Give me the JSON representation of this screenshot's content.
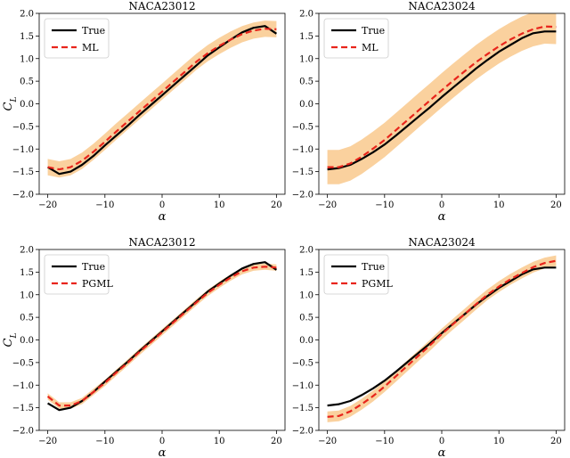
{
  "chart_data": [
    {
      "type": "line",
      "title": "NACA23012",
      "xlabel": "α",
      "ylabel": "C_L",
      "xlim": [
        -21.5,
        21.5
      ],
      "ylim": [
        -2.0,
        2.0
      ],
      "xticks": [
        -20,
        -10,
        0,
        10,
        20
      ],
      "yticks": [
        -2.0,
        -1.5,
        -1.0,
        -0.5,
        0.0,
        0.5,
        1.0,
        1.5,
        2.0
      ],
      "legend": "top-left",
      "x": [
        -20,
        -18,
        -16,
        -14,
        -12,
        -10,
        -8,
        -6,
        -4,
        -2,
        0,
        2,
        4,
        6,
        8,
        10,
        12,
        14,
        16,
        18,
        20
      ],
      "series": [
        {
          "name": "True",
          "style": "solid",
          "color": "#000000",
          "values": [
            -1.4,
            -1.55,
            -1.5,
            -1.35,
            -1.15,
            -0.92,
            -0.7,
            -0.48,
            -0.25,
            -0.03,
            0.19,
            0.41,
            0.63,
            0.85,
            1.07,
            1.25,
            1.42,
            1.58,
            1.68,
            1.72,
            1.55
          ]
        },
        {
          "name": "ML",
          "style": "dashed",
          "color": "#e8251c",
          "band": 0.18,
          "band_color": "#f9c98d",
          "values": [
            -1.4,
            -1.45,
            -1.4,
            -1.26,
            -1.06,
            -0.84,
            -0.61,
            -0.39,
            -0.17,
            0.05,
            0.27,
            0.49,
            0.71,
            0.93,
            1.12,
            1.28,
            1.42,
            1.54,
            1.62,
            1.66,
            1.65
          ]
        }
      ]
    },
    {
      "type": "line",
      "title": "NACA23024",
      "xlabel": "α",
      "ylabel": "",
      "xlim": [
        -21.5,
        21.5
      ],
      "ylim": [
        -2.0,
        2.0
      ],
      "xticks": [
        -20,
        -10,
        0,
        10,
        20
      ],
      "yticks": [
        -2.0,
        -1.5,
        -1.0,
        -0.5,
        0.0,
        0.5,
        1.0,
        1.5,
        2.0
      ],
      "legend": "top-left",
      "x": [
        -20,
        -18,
        -16,
        -14,
        -12,
        -10,
        -8,
        -6,
        -4,
        -2,
        0,
        2,
        4,
        6,
        8,
        10,
        12,
        14,
        16,
        18,
        20
      ],
      "series": [
        {
          "name": "True",
          "style": "solid",
          "color": "#000000",
          "values": [
            -1.45,
            -1.42,
            -1.35,
            -1.22,
            -1.07,
            -0.9,
            -0.7,
            -0.49,
            -0.28,
            -0.07,
            0.15,
            0.36,
            0.57,
            0.78,
            0.97,
            1.15,
            1.3,
            1.45,
            1.56,
            1.6,
            1.6
          ]
        },
        {
          "name": "ML",
          "style": "dashed",
          "color": "#e8251c",
          "band": 0.38,
          "band_color": "#f9c98d",
          "values": [
            -1.4,
            -1.4,
            -1.32,
            -1.17,
            -0.99,
            -0.8,
            -0.58,
            -0.36,
            -0.14,
            0.08,
            0.3,
            0.51,
            0.72,
            0.92,
            1.1,
            1.27,
            1.42,
            1.55,
            1.65,
            1.71,
            1.7
          ]
        }
      ]
    },
    {
      "type": "line",
      "title": "NACA23012",
      "xlabel": "α",
      "ylabel": "C_L",
      "xlim": [
        -21.5,
        21.5
      ],
      "ylim": [
        -2.0,
        2.0
      ],
      "xticks": [
        -20,
        -10,
        0,
        10,
        20
      ],
      "yticks": [
        -2.0,
        -1.5,
        -1.0,
        -0.5,
        0.0,
        0.5,
        1.0,
        1.5,
        2.0
      ],
      "legend": "top-left",
      "x": [
        -20,
        -18,
        -16,
        -14,
        -12,
        -10,
        -8,
        -6,
        -4,
        -2,
        0,
        2,
        4,
        6,
        8,
        10,
        12,
        14,
        16,
        18,
        20
      ],
      "series": [
        {
          "name": "True",
          "style": "solid",
          "color": "#000000",
          "values": [
            -1.4,
            -1.55,
            -1.5,
            -1.35,
            -1.15,
            -0.92,
            -0.7,
            -0.48,
            -0.25,
            -0.03,
            0.19,
            0.41,
            0.63,
            0.85,
            1.07,
            1.25,
            1.42,
            1.58,
            1.68,
            1.72,
            1.55
          ]
        },
        {
          "name": "PGML",
          "style": "dashed",
          "color": "#e8251c",
          "band": 0.07,
          "band_color": "#f9c98d",
          "values": [
            -1.25,
            -1.45,
            -1.45,
            -1.35,
            -1.15,
            -0.95,
            -0.72,
            -0.5,
            -0.27,
            -0.05,
            0.17,
            0.39,
            0.61,
            0.83,
            1.04,
            1.22,
            1.38,
            1.52,
            1.6,
            1.62,
            1.6
          ]
        }
      ]
    },
    {
      "type": "line",
      "title": "NACA23024",
      "xlabel": "α",
      "ylabel": "",
      "xlim": [
        -21.5,
        21.5
      ],
      "ylim": [
        -2.0,
        2.0
      ],
      "xticks": [
        -20,
        -10,
        0,
        10,
        20
      ],
      "yticks": [
        -2.0,
        -1.5,
        -1.0,
        -0.5,
        0.0,
        0.5,
        1.0,
        1.5,
        2.0
      ],
      "legend": "top-left",
      "x": [
        -20,
        -18,
        -16,
        -14,
        -12,
        -10,
        -8,
        -6,
        -4,
        -2,
        0,
        2,
        4,
        6,
        8,
        10,
        12,
        14,
        16,
        18,
        20
      ],
      "series": [
        {
          "name": "True",
          "style": "solid",
          "color": "#000000",
          "values": [
            -1.45,
            -1.42,
            -1.35,
            -1.22,
            -1.07,
            -0.9,
            -0.7,
            -0.49,
            -0.28,
            -0.07,
            0.15,
            0.36,
            0.57,
            0.78,
            0.97,
            1.15,
            1.3,
            1.45,
            1.56,
            1.6,
            1.6
          ]
        },
        {
          "name": "PGML",
          "style": "dashed",
          "color": "#e8251c",
          "band": 0.12,
          "band_color": "#f9c98d",
          "values": [
            -1.7,
            -1.68,
            -1.58,
            -1.42,
            -1.24,
            -1.03,
            -0.8,
            -0.57,
            -0.34,
            -0.11,
            0.13,
            0.35,
            0.57,
            0.79,
            1.0,
            1.18,
            1.34,
            1.48,
            1.61,
            1.7,
            1.75
          ]
        }
      ]
    }
  ]
}
